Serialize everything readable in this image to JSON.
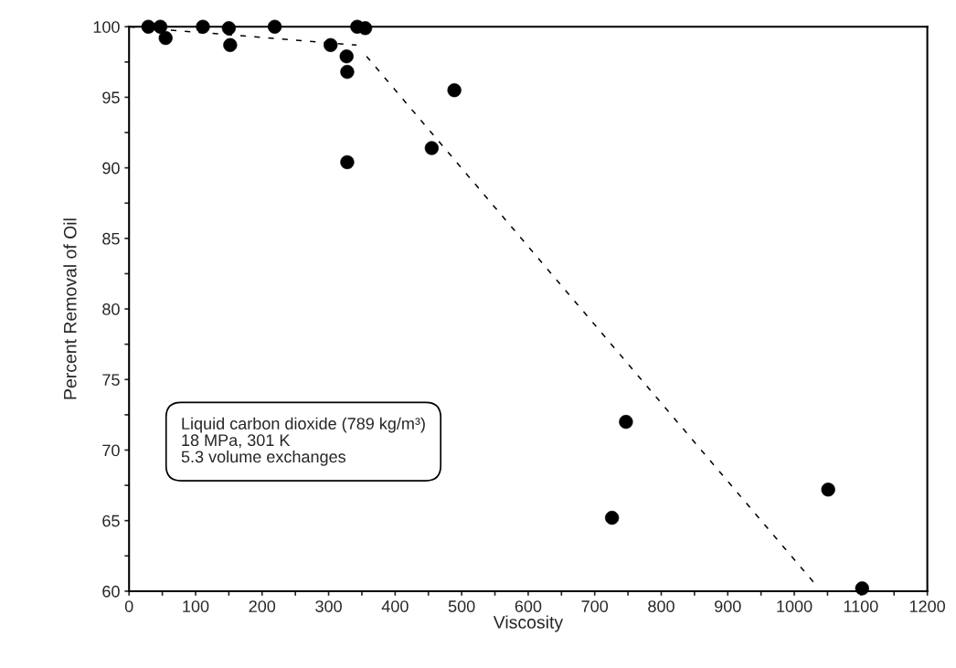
{
  "chart_data": {
    "type": "scatter",
    "xlabel": "Viscosity",
    "ylabel": "Percent Removal of Oil",
    "xlim": [
      0,
      1200
    ],
    "ylim": [
      60,
      100
    ],
    "xticks": [
      0,
      {
        "value": 50,
        "label": null
      },
      100,
      {
        "value": 150,
        "label": null
      },
      200,
      {
        "value": 250,
        "label": null
      },
      300,
      {
        "value": 350,
        "label": null
      },
      400,
      {
        "value": 450,
        "label": null
      },
      500,
      {
        "value": 550,
        "label": null
      },
      600,
      {
        "value": 650,
        "label": null
      },
      700,
      {
        "value": 750,
        "label": null
      },
      800,
      {
        "value": 850,
        "label": null
      },
      900,
      {
        "value": 950,
        "label": null
      },
      1000,
      {
        "value": 1050,
        "label": null
      },
      1100,
      {
        "value": 1150,
        "label": null
      },
      1200
    ],
    "yticks": [
      60,
      {
        "value": 62.5,
        "label": null
      },
      65,
      {
        "value": 67.5,
        "label": null
      },
      70,
      {
        "value": 72.5,
        "label": null
      },
      75,
      {
        "value": 77.5,
        "label": null
      },
      80,
      {
        "value": 82.5,
        "label": null
      },
      85,
      {
        "value": 87.5,
        "label": null
      },
      90,
      {
        "value": 92.5,
        "label": null
      },
      95,
      {
        "value": 97.5,
        "label": null
      },
      100
    ],
    "grid": false,
    "legend": false,
    "series": [
      {
        "color": "#000000",
        "marker": "circle",
        "x": [
          29,
          47,
          55,
          111,
          150,
          152,
          219,
          303,
          327,
          328,
          328,
          343,
          355,
          455,
          489,
          747,
          726,
          1051,
          1102
        ],
        "values": [
          100,
          100,
          99.2,
          100,
          99.9,
          98.7,
          100,
          98.7,
          97.9,
          96.8,
          90.4,
          100,
          99.9,
          91.4,
          95.5,
          72,
          65.2,
          67.2,
          60.2
        ]
      },
      {
        "type": "line",
        "color": "#000000",
        "line_style": "dashed",
        "marker": "none",
        "x": [
          0,
          342
        ],
        "values": [
          100,
          98.7
        ]
      },
      {
        "type": "line",
        "color": "#000000",
        "line_style": "dashed",
        "marker": "none",
        "x": [
          357,
          1035
        ],
        "values": [
          97.9,
          60.3
        ]
      }
    ],
    "annotations": [
      "Liquid carbon dioxide (789 kg/m³)\n18 MPa, 301 K\n5.3 volume exchanges"
    ]
  }
}
